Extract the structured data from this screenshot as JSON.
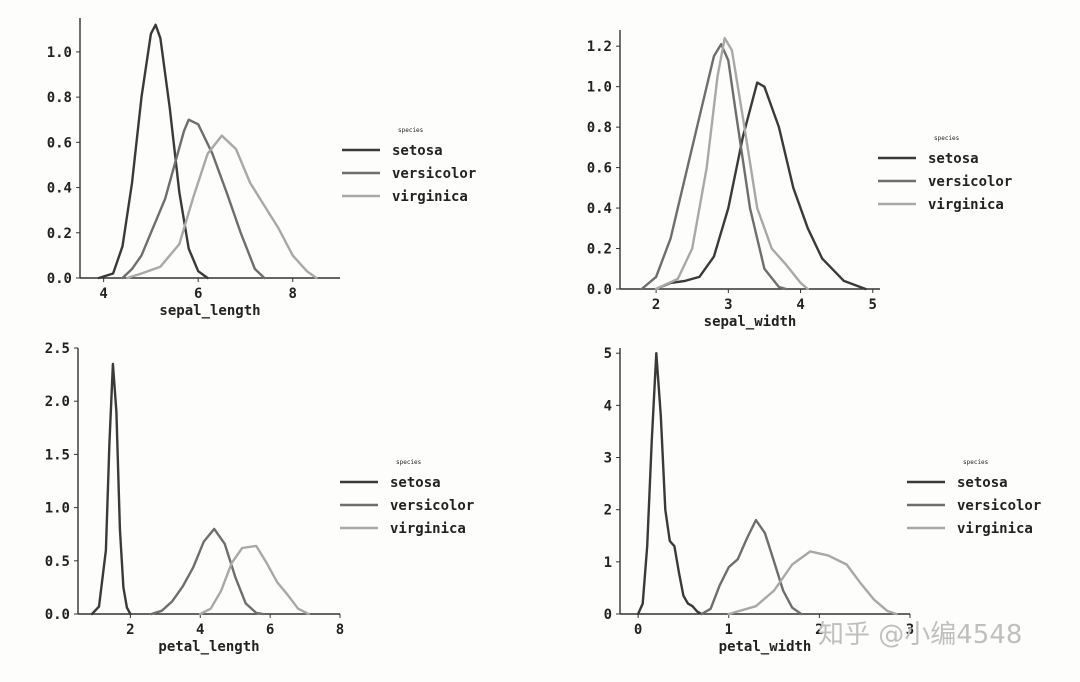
{
  "watermark": "知乎 @小编4548",
  "chart_data": [
    {
      "type": "line",
      "xlabel": "sepal_length",
      "ylabel": "",
      "xlim": [
        3.5,
        9
      ],
      "ylim": [
        0,
        1.15
      ],
      "xticks": [
        4,
        6,
        8
      ],
      "yticks": [
        0.0,
        0.2,
        0.4,
        0.6,
        0.8,
        1.0
      ],
      "ytick_labels": [
        "0.0",
        "0.2",
        "0.4",
        "0.6",
        "0.8",
        "1.0"
      ],
      "grid": false,
      "legend": {
        "title": "species",
        "position": "right"
      },
      "series": [
        {
          "name": "setosa",
          "color": "#3a3a3a",
          "points": [
            [
              3.9,
              0.0
            ],
            [
              4.2,
              0.02
            ],
            [
              4.4,
              0.14
            ],
            [
              4.6,
              0.42
            ],
            [
              4.8,
              0.8
            ],
            [
              5.0,
              1.08
            ],
            [
              5.1,
              1.12
            ],
            [
              5.2,
              1.06
            ],
            [
              5.4,
              0.75
            ],
            [
              5.6,
              0.38
            ],
            [
              5.8,
              0.13
            ],
            [
              6.0,
              0.03
            ],
            [
              6.2,
              0.0
            ]
          ]
        },
        {
          "name": "versicolor",
          "color": "#6e6e6e",
          "points": [
            [
              4.4,
              0.0
            ],
            [
              4.6,
              0.04
            ],
            [
              4.8,
              0.1
            ],
            [
              5.0,
              0.2
            ],
            [
              5.3,
              0.35
            ],
            [
              5.5,
              0.5
            ],
            [
              5.7,
              0.65
            ],
            [
              5.8,
              0.7
            ],
            [
              6.0,
              0.68
            ],
            [
              6.3,
              0.55
            ],
            [
              6.6,
              0.38
            ],
            [
              6.9,
              0.2
            ],
            [
              7.2,
              0.04
            ],
            [
              7.4,
              0.0
            ]
          ]
        },
        {
          "name": "virginica",
          "color": "#a8a8a8",
          "points": [
            [
              4.5,
              0.0
            ],
            [
              4.8,
              0.02
            ],
            [
              5.2,
              0.05
            ],
            [
              5.6,
              0.15
            ],
            [
              5.9,
              0.36
            ],
            [
              6.2,
              0.55
            ],
            [
              6.5,
              0.63
            ],
            [
              6.8,
              0.57
            ],
            [
              7.1,
              0.42
            ],
            [
              7.4,
              0.32
            ],
            [
              7.7,
              0.22
            ],
            [
              8.0,
              0.1
            ],
            [
              8.3,
              0.03
            ],
            [
              8.5,
              0.0
            ]
          ]
        }
      ]
    },
    {
      "type": "line",
      "xlabel": "sepal_width",
      "ylabel": "",
      "xlim": [
        1.5,
        5.1
      ],
      "ylim": [
        0,
        1.28
      ],
      "xticks": [
        2,
        3,
        4,
        5
      ],
      "yticks": [
        0.0,
        0.2,
        0.4,
        0.6,
        0.8,
        1.0,
        1.2
      ],
      "ytick_labels": [
        "0.0",
        "0.2",
        "0.4",
        "0.6",
        "0.8",
        "1.0",
        "1.2"
      ],
      "grid": false,
      "legend": {
        "title": "species",
        "position": "right"
      },
      "series": [
        {
          "name": "setosa",
          "color": "#3a3a3a",
          "points": [
            [
              2.0,
              0.0
            ],
            [
              2.2,
              0.03
            ],
            [
              2.4,
              0.04
            ],
            [
              2.6,
              0.06
            ],
            [
              2.8,
              0.16
            ],
            [
              3.0,
              0.4
            ],
            [
              3.2,
              0.75
            ],
            [
              3.4,
              1.02
            ],
            [
              3.5,
              1.0
            ],
            [
              3.7,
              0.8
            ],
            [
              3.9,
              0.5
            ],
            [
              4.1,
              0.3
            ],
            [
              4.3,
              0.15
            ],
            [
              4.6,
              0.04
            ],
            [
              4.9,
              0.0
            ]
          ]
        },
        {
          "name": "versicolor",
          "color": "#6e6e6e",
          "points": [
            [
              1.8,
              0.0
            ],
            [
              2.0,
              0.06
            ],
            [
              2.2,
              0.25
            ],
            [
              2.4,
              0.55
            ],
            [
              2.6,
              0.85
            ],
            [
              2.8,
              1.15
            ],
            [
              2.9,
              1.21
            ],
            [
              3.0,
              1.13
            ],
            [
              3.1,
              0.88
            ],
            [
              3.3,
              0.4
            ],
            [
              3.5,
              0.1
            ],
            [
              3.7,
              0.01
            ],
            [
              3.8,
              0.0
            ]
          ]
        },
        {
          "name": "virginica",
          "color": "#a8a8a8",
          "points": [
            [
              2.0,
              0.0
            ],
            [
              2.3,
              0.05
            ],
            [
              2.5,
              0.2
            ],
            [
              2.7,
              0.6
            ],
            [
              2.85,
              1.05
            ],
            [
              2.95,
              1.24
            ],
            [
              3.05,
              1.18
            ],
            [
              3.2,
              0.85
            ],
            [
              3.4,
              0.4
            ],
            [
              3.6,
              0.2
            ],
            [
              3.8,
              0.12
            ],
            [
              4.0,
              0.03
            ],
            [
              4.1,
              0.0
            ]
          ]
        }
      ]
    },
    {
      "type": "line",
      "xlabel": "petal_length",
      "ylabel": "",
      "xlim": [
        0.5,
        8
      ],
      "ylim": [
        0,
        2.5
      ],
      "xticks": [
        2,
        4,
        6,
        8
      ],
      "yticks": [
        0.0,
        0.5,
        1.0,
        1.5,
        2.0,
        2.5
      ],
      "ytick_labels": [
        "0.0",
        "0.5",
        "1.0",
        "1.5",
        "2.0",
        "2.5"
      ],
      "grid": false,
      "legend": {
        "title": "species",
        "position": "right"
      },
      "series": [
        {
          "name": "setosa",
          "color": "#3a3a3a",
          "points": [
            [
              0.9,
              0.0
            ],
            [
              1.1,
              0.07
            ],
            [
              1.3,
              0.6
            ],
            [
              1.4,
              1.6
            ],
            [
              1.5,
              2.35
            ],
            [
              1.6,
              1.9
            ],
            [
              1.7,
              0.8
            ],
            [
              1.8,
              0.25
            ],
            [
              1.9,
              0.06
            ],
            [
              2.0,
              0.0
            ]
          ]
        },
        {
          "name": "versicolor",
          "color": "#6e6e6e",
          "points": [
            [
              2.6,
              0.0
            ],
            [
              2.9,
              0.03
            ],
            [
              3.2,
              0.12
            ],
            [
              3.5,
              0.26
            ],
            [
              3.8,
              0.44
            ],
            [
              4.1,
              0.68
            ],
            [
              4.4,
              0.8
            ],
            [
              4.7,
              0.66
            ],
            [
              5.0,
              0.35
            ],
            [
              5.3,
              0.1
            ],
            [
              5.6,
              0.01
            ],
            [
              5.8,
              0.0
            ]
          ]
        },
        {
          "name": "virginica",
          "color": "#a8a8a8",
          "points": [
            [
              4.0,
              0.0
            ],
            [
              4.3,
              0.05
            ],
            [
              4.6,
              0.22
            ],
            [
              4.9,
              0.48
            ],
            [
              5.2,
              0.62
            ],
            [
              5.6,
              0.64
            ],
            [
              5.9,
              0.48
            ],
            [
              6.2,
              0.3
            ],
            [
              6.5,
              0.18
            ],
            [
              6.8,
              0.05
            ],
            [
              7.1,
              0.0
            ]
          ]
        }
      ]
    },
    {
      "type": "line",
      "xlabel": "petal_width",
      "ylabel": "",
      "xlim": [
        -0.2,
        3
      ],
      "ylim": [
        0,
        5.1
      ],
      "xticks": [
        0,
        1,
        2,
        3
      ],
      "yticks": [
        0,
        1,
        2,
        3,
        4,
        5
      ],
      "ytick_labels": [
        "0",
        "1",
        "2",
        "3",
        "4",
        "5"
      ],
      "grid": false,
      "legend": {
        "title": "species",
        "position": "right"
      },
      "series": [
        {
          "name": "setosa",
          "color": "#3a3a3a",
          "points": [
            [
              0.0,
              0.0
            ],
            [
              0.05,
              0.2
            ],
            [
              0.1,
              1.3
            ],
            [
              0.15,
              3.3
            ],
            [
              0.2,
              5.0
            ],
            [
              0.25,
              3.8
            ],
            [
              0.3,
              2.0
            ],
            [
              0.35,
              1.4
            ],
            [
              0.4,
              1.3
            ],
            [
              0.45,
              0.8
            ],
            [
              0.5,
              0.35
            ],
            [
              0.55,
              0.2
            ],
            [
              0.6,
              0.15
            ],
            [
              0.65,
              0.05
            ],
            [
              0.7,
              0.0
            ]
          ]
        },
        {
          "name": "versicolor",
          "color": "#6e6e6e",
          "points": [
            [
              0.7,
              0.0
            ],
            [
              0.8,
              0.1
            ],
            [
              0.9,
              0.55
            ],
            [
              1.0,
              0.9
            ],
            [
              1.1,
              1.05
            ],
            [
              1.2,
              1.45
            ],
            [
              1.3,
              1.8
            ],
            [
              1.4,
              1.55
            ],
            [
              1.5,
              1.0
            ],
            [
              1.6,
              0.45
            ],
            [
              1.7,
              0.12
            ],
            [
              1.8,
              0.0
            ]
          ]
        },
        {
          "name": "virginica",
          "color": "#a8a8a8",
          "points": [
            [
              1.0,
              0.0
            ],
            [
              1.3,
              0.15
            ],
            [
              1.5,
              0.45
            ],
            [
              1.7,
              0.95
            ],
            [
              1.9,
              1.2
            ],
            [
              2.1,
              1.12
            ],
            [
              2.3,
              0.95
            ],
            [
              2.45,
              0.6
            ],
            [
              2.6,
              0.28
            ],
            [
              2.75,
              0.06
            ],
            [
              2.85,
              0.0
            ]
          ]
        }
      ]
    }
  ]
}
